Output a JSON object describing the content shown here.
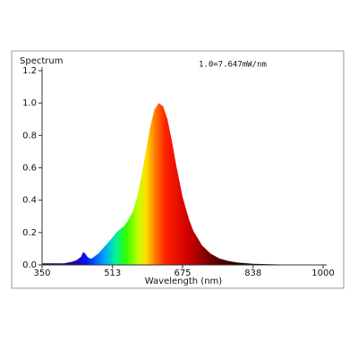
{
  "chart_data": {
    "type": "area",
    "title": "Spectrum",
    "annotation": "1.0=7.647mW/nm",
    "x_label": "Wavelength (nm)",
    "x": [
      350,
      380,
      400,
      420,
      430,
      440,
      445,
      450,
      455,
      460,
      465,
      470,
      480,
      490,
      500,
      513,
      525,
      540,
      550,
      560,
      570,
      580,
      590,
      600,
      610,
      620,
      630,
      640,
      650,
      660,
      675,
      690,
      700,
      720,
      740,
      760,
      780,
      800,
      838,
      900,
      1000
    ],
    "values": [
      0.01,
      0.01,
      0.01,
      0.02,
      0.03,
      0.05,
      0.08,
      0.07,
      0.05,
      0.04,
      0.04,
      0.05,
      0.07,
      0.1,
      0.13,
      0.17,
      0.21,
      0.24,
      0.28,
      0.33,
      0.42,
      0.55,
      0.7,
      0.85,
      0.96,
      1.0,
      0.98,
      0.9,
      0.77,
      0.62,
      0.42,
      0.28,
      0.21,
      0.12,
      0.07,
      0.04,
      0.025,
      0.015,
      0.007,
      0.003,
      0
    ],
    "xlim": [
      350,
      1000
    ],
    "xticks": [
      350,
      513,
      675,
      838,
      1000
    ],
    "ylim": [
      0,
      1.2
    ],
    "yticks": [
      {
        "value": 0,
        "label": "0.0"
      },
      0.2,
      0.4,
      0.6,
      0.8,
      {
        "value": 1,
        "label": "1.0"
      },
      1.2
    ]
  }
}
